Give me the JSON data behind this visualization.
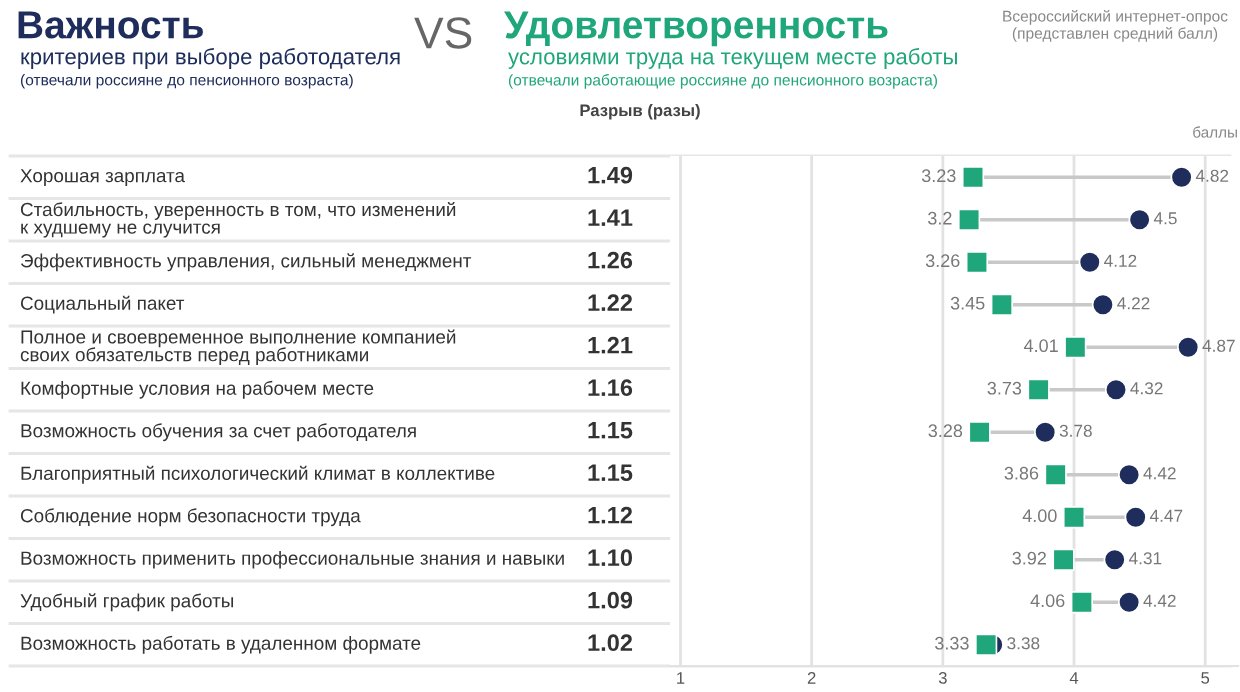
{
  "chart_data": {
    "type": "scatter",
    "orientation": "horizontal",
    "categories": [
      "Хорошая зарплата",
      "Стабильность, уверенность в том, что изменений\nк худшему не случится",
      "Эффективность управления, сильный менеджмент",
      "Социальный пакет",
      "Полное и своевременное выполнение компанией\nсвоих обязательств перед работниками",
      "Комфортные условия на рабочем месте",
      "Возможность обучения за счет работодателя",
      "Благоприятный психологический климат в коллективе",
      "Соблюдение норм безопасности труда",
      "Возможность применить профессиональные знания и навыки",
      "Удобный график работы",
      "Возможность работать в удаленном формате"
    ],
    "series": [
      {
        "name": "Важность",
        "color": "#1f2d5c",
        "marker": "circle",
        "values": [
          4.82,
          4.5,
          4.12,
          4.22,
          4.87,
          4.32,
          3.78,
          4.42,
          4.47,
          4.31,
          4.42,
          3.38
        ],
        "value_labels": [
          "4.82",
          "4.5",
          "4.12",
          "4.22",
          "4.87",
          "4.32",
          "3.78",
          "4.42",
          "4.47",
          "4.31",
          "4.42",
          "3.38"
        ]
      },
      {
        "name": "Удовлетворенность",
        "color": "#1fa67a",
        "marker": "square",
        "values": [
          3.23,
          3.2,
          3.26,
          3.45,
          4.01,
          3.73,
          3.28,
          3.86,
          4.0,
          3.92,
          4.06,
          3.33
        ],
        "value_labels": [
          "3.23",
          "3.2",
          "3.26",
          "3.45",
          "4.01",
          "3.73",
          "3.28",
          "3.86",
          "4.00",
          "3.92",
          "4.06",
          "3.33"
        ]
      }
    ],
    "xlabel": "баллы",
    "xlim": [
      0.92,
      5.25
    ],
    "xticks": [
      1,
      2,
      3,
      4,
      5
    ],
    "grid": "x",
    "annotations": [
      "критериев при выборе работодателя",
      "(отвечали россияне до пенсионного возраста)",
      "VS",
      "условиями труда на текущем месте работы",
      "(отвечали работающие россияне до пенсионного возраста)",
      "Всероссийский интернет-опрос\n(представлен средний балл)",
      "Разрыв (разы)",
      "1.49",
      "1.41",
      "1.26",
      "1.22",
      "1.21",
      "1.16",
      "1.15",
      "1.15",
      "1.12",
      "1.10",
      "1.09",
      "1.02"
    ]
  }
}
